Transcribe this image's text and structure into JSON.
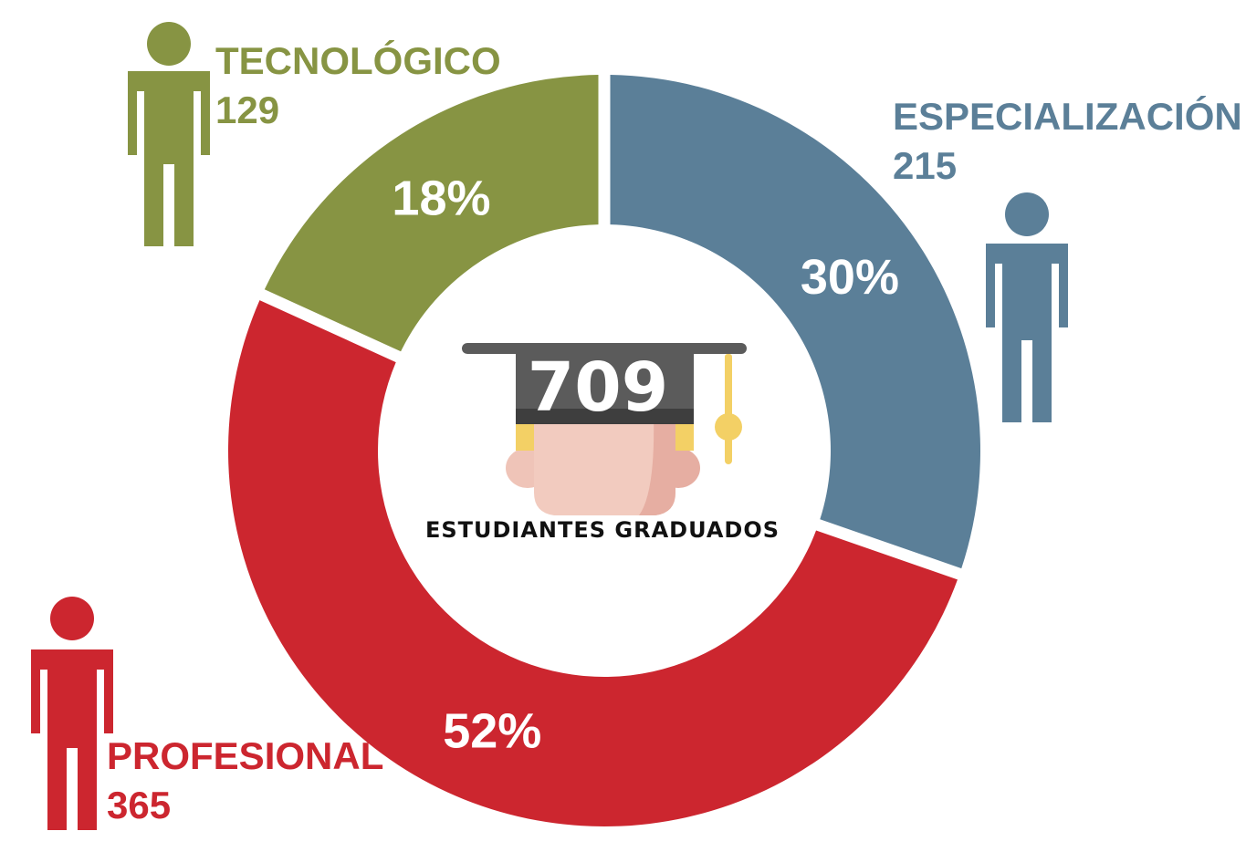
{
  "chart_data": {
    "type": "pie",
    "donut": true,
    "total": "709",
    "center_caption": "ESTUDIANTES GRADUADOS",
    "center_icon": "graduate-cap-head-icon",
    "person_icon": "person-icon",
    "slices": [
      {
        "name": "ESPECIALIZACIÓN",
        "value": 215,
        "value_label": "215",
        "percent_label": "30%",
        "color": "#5b7f98"
      },
      {
        "name": "PROFESIONAL",
        "value": 365,
        "value_label": "365",
        "percent_label": "52%",
        "color": "#cc262f"
      },
      {
        "name": "TECNOLÓGICO",
        "value": 129,
        "value_label": "129",
        "percent_label": "18%",
        "color": "#879443"
      }
    ]
  }
}
